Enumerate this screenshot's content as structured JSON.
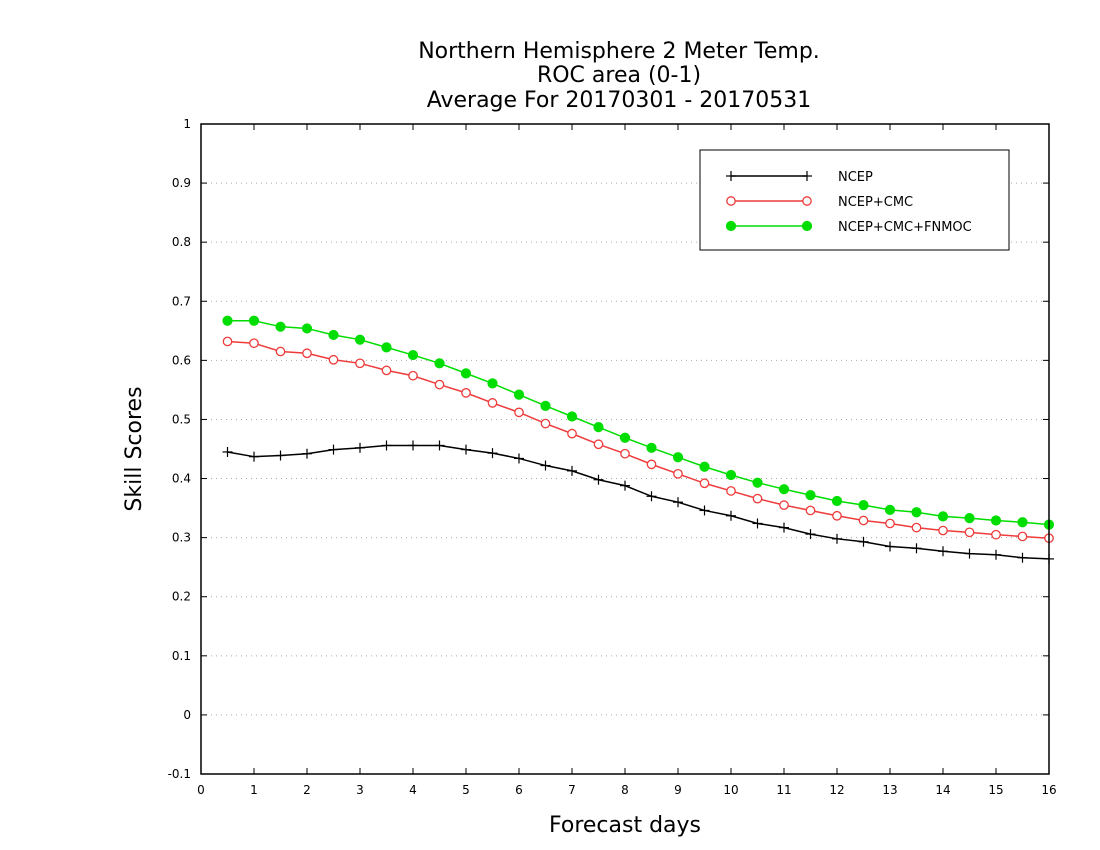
{
  "chart_data": {
    "type": "line",
    "title": [
      "Northern Hemisphere 2 Meter Temp.",
      "ROC area (0-1)",
      "Average For 20170301 - 20170531"
    ],
    "xlabel": "Forecast days",
    "ylabel": "Skill Scores",
    "xlim": [
      0,
      16
    ],
    "ylim": [
      -0.1,
      1
    ],
    "xticks": [
      "0",
      "1",
      "2",
      "3",
      "4",
      "5",
      "6",
      "7",
      "8",
      "9",
      "10",
      "11",
      "12",
      "13",
      "14",
      "15",
      "16"
    ],
    "yticks": [
      "-0.1",
      "0",
      "0.1",
      "0.2",
      "0.3",
      "0.4",
      "0.5",
      "0.6",
      "0.7",
      "0.8",
      "0.9",
      "1"
    ],
    "grid": "horizontal dotted",
    "legend_position": "top-right",
    "x": [
      0.5,
      1,
      1.5,
      2,
      2.5,
      3,
      3.5,
      4,
      4.5,
      5,
      5.5,
      6,
      6.5,
      7,
      7.5,
      8,
      8.5,
      9,
      9.5,
      10,
      10.5,
      11,
      11.5,
      12,
      12.5,
      13,
      13.5,
      14,
      14.5,
      15,
      15.5,
      16
    ],
    "series": [
      {
        "name": "NCEP",
        "color": "#000000",
        "marker": "plus",
        "values": [
          0.445,
          0.437,
          0.439,
          0.442,
          0.449,
          0.452,
          0.456,
          0.456,
          0.456,
          0.449,
          0.443,
          0.434,
          0.422,
          0.413,
          0.398,
          0.388,
          0.37,
          0.36,
          0.346,
          0.337,
          0.324,
          0.317,
          0.306,
          0.298,
          0.293,
          0.285,
          0.282,
          0.277,
          0.273,
          0.271,
          0.266,
          0.264
        ]
      },
      {
        "name": "NCEP+CMC",
        "color": "#ee3b3b",
        "marker": "open-circle",
        "values": [
          0.632,
          0.629,
          0.615,
          0.612,
          0.601,
          0.595,
          0.583,
          0.574,
          0.559,
          0.545,
          0.528,
          0.512,
          0.493,
          0.476,
          0.458,
          0.442,
          0.424,
          0.408,
          0.392,
          0.379,
          0.366,
          0.355,
          0.346,
          0.337,
          0.329,
          0.324,
          0.317,
          0.312,
          0.309,
          0.305,
          0.302,
          0.299
        ]
      },
      {
        "name": "NCEP+CMC+FNMOC",
        "color": "#00dd00",
        "marker": "filled-circle",
        "values": [
          0.667,
          0.667,
          0.657,
          0.654,
          0.643,
          0.635,
          0.622,
          0.609,
          0.595,
          0.578,
          0.561,
          0.542,
          0.523,
          0.505,
          0.487,
          0.469,
          0.452,
          0.436,
          0.42,
          0.406,
          0.393,
          0.382,
          0.372,
          0.362,
          0.355,
          0.347,
          0.343,
          0.336,
          0.333,
          0.329,
          0.326,
          0.322
        ]
      }
    ]
  }
}
